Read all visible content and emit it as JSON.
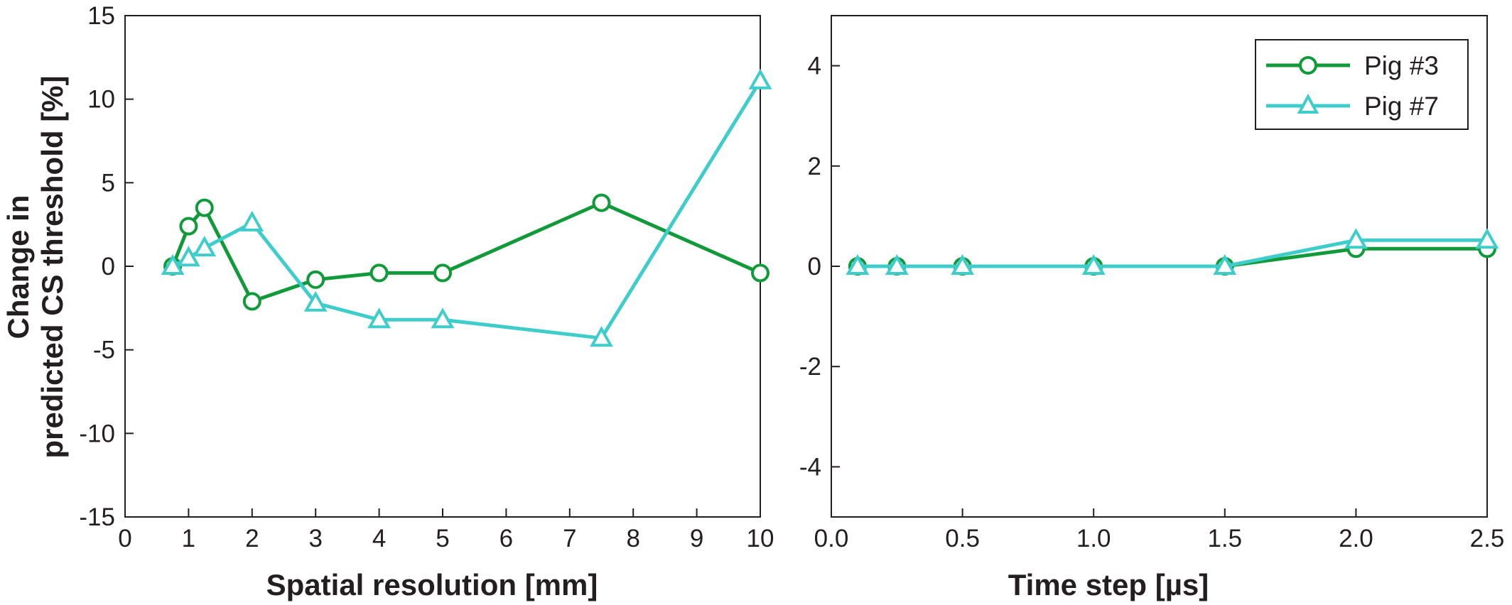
{
  "colors": {
    "pig3": "#109a3a",
    "pig7": "#3fcdcc",
    "axis": "#231f20"
  },
  "chart_data": [
    {
      "type": "line",
      "xlabel": "Spatial resolution [mm]",
      "ylabel": [
        "Change in",
        "predicted CS threshold [%]"
      ],
      "xlim": [
        0,
        10
      ],
      "ylim": [
        -15,
        15
      ],
      "xticks": [
        0,
        1,
        2,
        3,
        4,
        5,
        6,
        7,
        8,
        9,
        10
      ],
      "xtick_labels": [
        "0",
        "1",
        "2",
        "3",
        "4",
        "5",
        "6",
        "7",
        "8",
        "9",
        "10"
      ],
      "yticks": [
        -15,
        -10,
        -5,
        0,
        5,
        10,
        15
      ],
      "ytick_labels": [
        "-15",
        "-10",
        "-5",
        "0",
        "5",
        "10",
        "15"
      ],
      "grid": false,
      "series": [
        {
          "name": "Pig #3",
          "marker": "circle",
          "color": "#109a3a",
          "x": [
            0.75,
            1,
            1.25,
            2,
            3,
            4,
            5,
            7.5,
            10
          ],
          "y": [
            0,
            2.4,
            3.5,
            -2.1,
            -0.8,
            -0.4,
            -0.4,
            3.8,
            -0.4
          ]
        },
        {
          "name": "Pig #7",
          "marker": "triangle",
          "color": "#3fcdcc",
          "x": [
            0.75,
            1,
            1.25,
            2,
            3,
            4,
            5,
            7.5,
            10
          ],
          "y": [
            0,
            0.5,
            1.1,
            2.6,
            -2.2,
            -3.2,
            -3.2,
            -4.3,
            11.1
          ]
        }
      ]
    },
    {
      "type": "line",
      "xlabel": "Time step [µs]",
      "xlim": [
        0,
        2.5
      ],
      "ylim": [
        -5,
        5
      ],
      "xticks": [
        0,
        0.5,
        1,
        1.5,
        2,
        2.5
      ],
      "xtick_labels": [
        "0.0",
        "0.5",
        "1.0",
        "1.5",
        "2.0",
        "2.5"
      ],
      "yticks": [
        -4,
        -2,
        0,
        2,
        4
      ],
      "ytick_labels": [
        "-4",
        "-2",
        "0",
        "2",
        "4"
      ],
      "grid": false,
      "legend": {
        "position": "top-right",
        "entries": [
          "Pig #3",
          "Pig #7"
        ]
      },
      "series": [
        {
          "name": "Pig #3",
          "marker": "circle",
          "color": "#109a3a",
          "x": [
            0.1,
            0.25,
            0.5,
            1.0,
            1.5,
            2.0,
            2.5
          ],
          "y": [
            0,
            0,
            0,
            0,
            0,
            0.35,
            0.35
          ]
        },
        {
          "name": "Pig #7",
          "marker": "triangle",
          "color": "#3fcdcc",
          "x": [
            0.1,
            0.25,
            0.5,
            1.0,
            1.5,
            2.0,
            2.5
          ],
          "y": [
            0,
            0,
            0,
            0,
            0,
            0.52,
            0.52
          ]
        }
      ]
    }
  ]
}
